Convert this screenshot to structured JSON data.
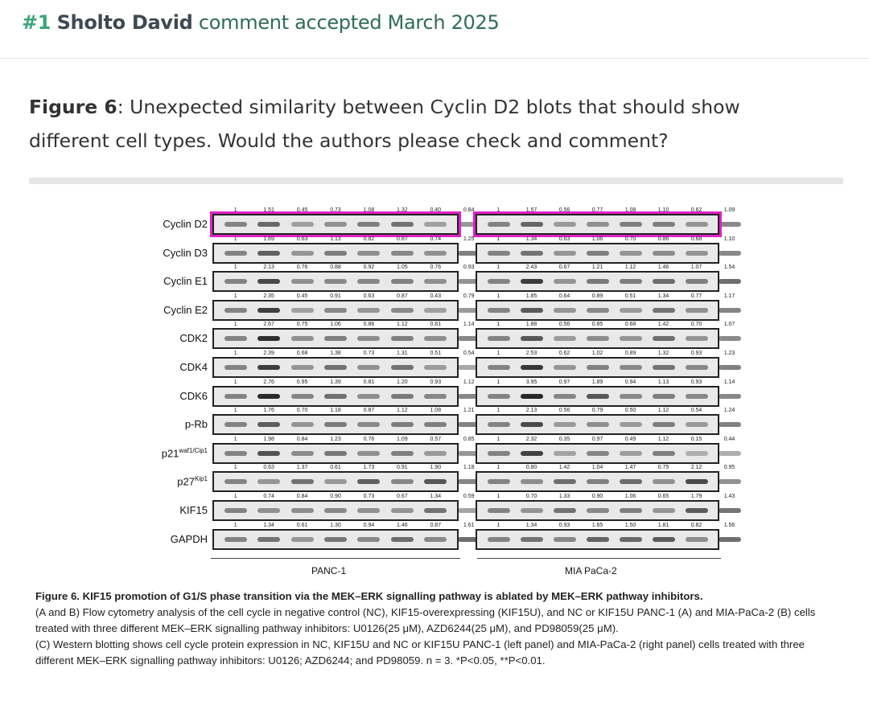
{
  "header": {
    "number": "#1",
    "author": "Sholto David",
    "action": "comment accepted March 2025"
  },
  "comment": {
    "figure_ref": "Figure 6",
    "text": ": Unexpected similarity between Cyclin D2 blots that should show different cell types. Would the authors please check and comment?"
  },
  "figure": {
    "panels": [
      "PANC-1",
      "MIA PaCa-2"
    ],
    "rows": [
      {
        "label": "Cyclin D2",
        "sup": "",
        "left": [
          "1",
          "1.51",
          "0.45",
          "0.73",
          "1.08",
          "1.32",
          "0.40",
          "0.84"
        ],
        "right": [
          "1",
          "1.57",
          "0.56",
          "0.77",
          "1.08",
          "1.10",
          "0.62",
          "1.09"
        ]
      },
      {
        "label": "Cyclin D3",
        "sup": "",
        "left": [
          "1",
          "1.69",
          "0.63",
          "1.13",
          "0.82",
          "0.87",
          "0.74",
          "1.25"
        ],
        "right": [
          "1",
          "1.34",
          "0.63",
          "1.06",
          "0.70",
          "0.86",
          "0.68",
          "1.10"
        ]
      },
      {
        "label": "Cyclin E1",
        "sup": "",
        "left": [
          "1",
          "2.13",
          "0.76",
          "0.88",
          "0.92",
          "1.05",
          "0.76",
          "0.93"
        ],
        "right": [
          "1",
          "2.43",
          "0.67",
          "1.21",
          "1.12",
          "1.46",
          "1.07",
          "1.54"
        ]
      },
      {
        "label": "Cyclin E2",
        "sup": "",
        "left": [
          "1",
          "2.35",
          "0.45",
          "0.91",
          "0.63",
          "0.87",
          "0.43",
          "0.79"
        ],
        "right": [
          "1",
          "1.85",
          "0.64",
          "0.89",
          "0.51",
          "1.34",
          "0.77",
          "1.17"
        ]
      },
      {
        "label": "CDK2",
        "sup": "",
        "left": [
          "1",
          "2.67",
          "0.75",
          "1.06",
          "0.86",
          "1.12",
          "0.81",
          "1.14"
        ],
        "right": [
          "1",
          "1.88",
          "0.56",
          "0.85",
          "0.68",
          "1.42",
          "0.70",
          "1.07"
        ]
      },
      {
        "label": "CDK4",
        "sup": "",
        "left": [
          "1",
          "2.39",
          "0.68",
          "1.38",
          "0.73",
          "1.31",
          "0.51",
          "0.54"
        ],
        "right": [
          "1",
          "2.53",
          "0.62",
          "1.02",
          "0.89",
          "1.32",
          "0.93",
          "1.23"
        ]
      },
      {
        "label": "CDK6",
        "sup": "",
        "left": [
          "1",
          "2.76",
          "0.95",
          "1.39",
          "0.81",
          "1.20",
          "0.93",
          "1.12"
        ],
        "right": [
          "1",
          "3.95",
          "0.97",
          "1.89",
          "0.94",
          "1.13",
          "0.93",
          "1.14"
        ]
      },
      {
        "label": "p-Rb",
        "sup": "",
        "left": [
          "1",
          "1.76",
          "0.70",
          "1.18",
          "0.87",
          "1.12",
          "1.08",
          "1.21"
        ],
        "right": [
          "1",
          "2.13",
          "0.56",
          "0.79",
          "0.50",
          "1.12",
          "0.54",
          "1.24"
        ]
      },
      {
        "label": "p21",
        "sup": "waf1/Cip1",
        "left": [
          "1",
          "1.98",
          "0.84",
          "1.23",
          "0.76",
          "1.09",
          "0.57",
          "0.85"
        ],
        "right": [
          "1",
          "2.32",
          "0.35",
          "0.97",
          "0.49",
          "1.12",
          "0.15",
          "0.44"
        ]
      },
      {
        "label": "p27",
        "sup": "Kip1",
        "left": [
          "1",
          "0.63",
          "1.37",
          "0.61",
          "1.73",
          "0.91",
          "1.90",
          "1.18"
        ],
        "right": [
          "1",
          "0.80",
          "1.42",
          "1.04",
          "1.47",
          "0.75",
          "2.12",
          "0.95"
        ]
      },
      {
        "label": "KIF15",
        "sup": "",
        "left": [
          "1",
          "0.74",
          "0.84",
          "0.90",
          "0.73",
          "0.67",
          "1.34",
          "0.59"
        ],
        "right": [
          "1",
          "0.70",
          "1.33",
          "0.90",
          "1.06",
          "0.65",
          "1.79",
          "1.43"
        ]
      },
      {
        "label": "GAPDH",
        "sup": "",
        "left": [
          "1",
          "1.34",
          "0.61",
          "1.30",
          "0.94",
          "1.46",
          "0.87",
          "1.61"
        ],
        "right": [
          "1",
          "1.34",
          "0.93",
          "1.65",
          "1.50",
          "1.81",
          "0.82",
          "1.56"
        ]
      }
    ]
  },
  "caption": {
    "title": "Figure 6. KIF15 promotion of G1/S phase transition via the MEK–ERK signalling pathway is ablated by MEK–ERK pathway inhibitors.",
    "line_a": "(A and B) Flow cytometry analysis of the cell cycle in negative control (NC), KIF15-overexpressing (KIF15U), and NC or KIF15U PANC-1 (A) and MIA-PaCa-2 (B) cells treated with three different MEK–ERK signalling pathway inhibitors: U0126(25 μM), AZD6244(25 μM), and PD98059(25 μM).",
    "line_c": "(C) Western blotting shows cell cycle protein expression in NC, KIF15U and NC or KIF15U PANC-1 (left panel) and MIA-PaCa-2 (right panel) cells treated with three different MEK–ERK signalling pathway inhibitors: U0126; AZD6244; and PD98059. n = 3. *P<0.05, **P<0.01."
  },
  "colors": {
    "accent_number": "#3aa57a",
    "author": "#3d4a52",
    "action": "#2f6b5a",
    "highlight": "#e020c8"
  }
}
